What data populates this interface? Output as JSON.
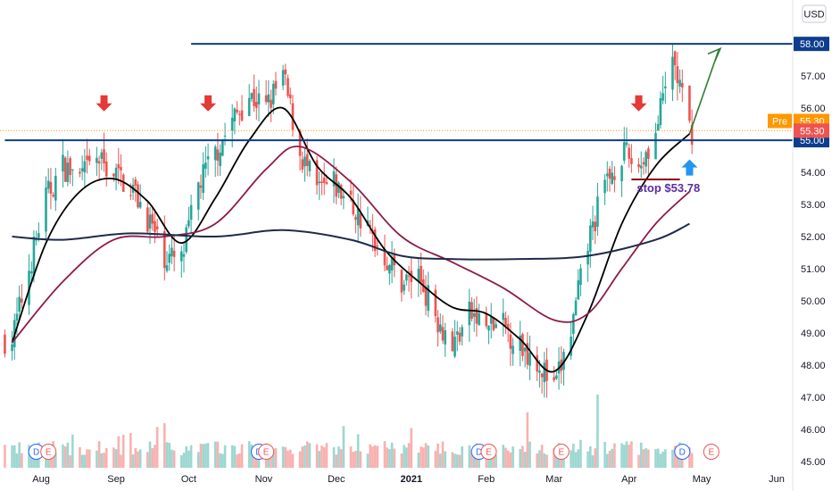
{
  "chart_data": {
    "type": "candlestick",
    "currency": "USD",
    "y_range": [
      44.8,
      59.2
    ],
    "y_ticks": [
      "45.00",
      "46.00",
      "47.00",
      "48.00",
      "49.00",
      "50.00",
      "51.00",
      "52.00",
      "53.00",
      "54.00",
      "55.00",
      "56.00",
      "57.00",
      "58.00"
    ],
    "x_ticks": [
      "Aug",
      "Sep",
      "Oct",
      "Nov",
      "Dec",
      "2021",
      "Feb",
      "Mar",
      "Apr",
      "May",
      "Jun"
    ],
    "price_path": [
      [
        "2020-07-20",
        48.8
      ],
      [
        "2020-07-27",
        51.0
      ],
      [
        "2020-08-03",
        53.2
      ],
      [
        "2020-08-10",
        54.2
      ],
      [
        "2020-08-17",
        53.8
      ],
      [
        "2020-08-24",
        54.4
      ],
      [
        "2020-08-31",
        54.0
      ],
      [
        "2020-09-07",
        53.6
      ],
      [
        "2020-09-14",
        52.6
      ],
      [
        "2020-09-21",
        51.4
      ],
      [
        "2020-09-28",
        51.2
      ],
      [
        "2020-10-05",
        53.6
      ],
      [
        "2020-10-12",
        54.6
      ],
      [
        "2020-10-19",
        55.6
      ],
      [
        "2020-10-26",
        56.4
      ],
      [
        "2020-11-02",
        56.0
      ],
      [
        "2020-11-09",
        57.0
      ],
      [
        "2020-11-16",
        54.6
      ],
      [
        "2020-11-23",
        53.4
      ],
      [
        "2020-11-30",
        53.6
      ],
      [
        "2020-12-07",
        53.0
      ],
      [
        "2020-12-14",
        52.2
      ],
      [
        "2020-12-21",
        51.4
      ],
      [
        "2020-12-28",
        50.6
      ],
      [
        "2021-01-04",
        50.8
      ],
      [
        "2021-01-11",
        49.6
      ],
      [
        "2021-01-18",
        48.6
      ],
      [
        "2021-01-25",
        49.6
      ],
      [
        "2021-02-01",
        49.2
      ],
      [
        "2021-02-08",
        49.2
      ],
      [
        "2021-02-15",
        48.6
      ],
      [
        "2021-02-22",
        48.2
      ],
      [
        "2021-03-01",
        47.2
      ],
      [
        "2021-03-08",
        49.0
      ],
      [
        "2021-03-15",
        51.8
      ],
      [
        "2021-03-22",
        53.6
      ],
      [
        "2021-03-29",
        54.6
      ],
      [
        "2021-04-05",
        54.2
      ],
      [
        "2021-04-12",
        55.2
      ],
      [
        "2021-04-19",
        57.6
      ],
      [
        "2021-04-26",
        55.3
      ]
    ],
    "moving_averages": [
      {
        "color": "#000000",
        "points": [
          [
            "2020-07-20",
            48.7
          ],
          [
            "2020-08-03",
            51.8
          ],
          [
            "2020-08-17",
            53.4
          ],
          [
            "2020-08-31",
            53.8
          ],
          [
            "2020-09-14",
            53.1
          ],
          [
            "2020-09-28",
            51.8
          ],
          [
            "2020-10-12",
            53.2
          ],
          [
            "2020-10-26",
            55.0
          ],
          [
            "2020-11-09",
            56.0
          ],
          [
            "2020-11-23",
            54.2
          ],
          [
            "2020-12-07",
            53.2
          ],
          [
            "2020-12-21",
            51.6
          ],
          [
            "2021-01-04",
            50.6
          ],
          [
            "2021-01-18",
            49.8
          ],
          [
            "2021-02-01",
            49.6
          ],
          [
            "2021-02-15",
            48.8
          ],
          [
            "2021-03-01",
            47.8
          ],
          [
            "2021-03-15",
            49.6
          ],
          [
            "2021-03-29",
            52.4
          ],
          [
            "2021-04-12",
            54.2
          ],
          [
            "2021-04-26",
            55.2
          ]
        ]
      },
      {
        "color": "#8e1a4b",
        "points": [
          [
            "2020-07-20",
            48.7
          ],
          [
            "2020-08-10",
            50.6
          ],
          [
            "2020-08-31",
            51.9
          ],
          [
            "2020-09-21",
            52.0
          ],
          [
            "2020-10-12",
            52.4
          ],
          [
            "2020-11-02",
            54.1
          ],
          [
            "2020-11-16",
            54.8
          ],
          [
            "2020-12-07",
            53.7
          ],
          [
            "2020-12-28",
            52.0
          ],
          [
            "2021-01-18",
            51.2
          ],
          [
            "2021-02-08",
            50.4
          ],
          [
            "2021-03-01",
            49.4
          ],
          [
            "2021-03-15",
            49.6
          ],
          [
            "2021-03-29",
            51.0
          ],
          [
            "2021-04-12",
            52.4
          ],
          [
            "2021-04-26",
            53.4
          ]
        ]
      },
      {
        "color": "#1e2b4a",
        "points": [
          [
            "2020-07-20",
            52.0
          ],
          [
            "2020-08-10",
            51.9
          ],
          [
            "2020-09-07",
            52.1
          ],
          [
            "2020-10-12",
            52.0
          ],
          [
            "2020-11-09",
            52.2
          ],
          [
            "2020-12-07",
            51.9
          ],
          [
            "2020-12-28",
            51.4
          ],
          [
            "2021-01-18",
            51.3
          ],
          [
            "2021-02-15",
            51.3
          ],
          [
            "2021-03-15",
            51.4
          ],
          [
            "2021-04-12",
            51.9
          ],
          [
            "2021-04-26",
            52.4
          ]
        ]
      }
    ],
    "horizontal_levels": [
      {
        "price": 58.0,
        "label": "58.00",
        "color": "#0d3d8c",
        "from": "2020-10-02"
      },
      {
        "price": 55.0,
        "label": "55.00",
        "color": "#0d3d8c",
        "from": "2020-07-17"
      }
    ],
    "price_tags": [
      {
        "label": "Pre",
        "value": "55.30",
        "price": 55.6,
        "color": "#ff9800"
      },
      {
        "label": "",
        "value": "55.30",
        "price": 55.3,
        "color": "#ef5350"
      }
    ],
    "dotted_level": 55.3,
    "resistance_arrows": [
      {
        "date": "2020-08-27",
        "price": 55.9
      },
      {
        "date": "2020-10-09",
        "price": 55.9
      },
      {
        "date": "2021-04-05",
        "price": 55.9
      }
    ],
    "support_arrow": {
      "date": "2021-04-26",
      "price": 54.4
    },
    "stop_line": {
      "price": 53.78,
      "from": "2021-04-02",
      "to": "2021-04-22",
      "label": "stop $53.78"
    },
    "projection": {
      "from": [
        "2021-04-26",
        55.2
      ],
      "to": [
        "2021-05-08",
        57.8
      ]
    },
    "events": [
      {
        "date": "2020-07-30",
        "letter": "D",
        "color": "#2962ff"
      },
      {
        "date": "2020-08-04",
        "letter": "E",
        "color": "#ef5350"
      },
      {
        "date": "2020-10-30",
        "letter": "D",
        "color": "#2962ff"
      },
      {
        "date": "2020-11-02",
        "letter": "E",
        "color": "#ef5350"
      },
      {
        "date": "2021-01-29",
        "letter": "D",
        "color": "#2962ff"
      },
      {
        "date": "2021-02-02",
        "letter": "E",
        "color": "#ef5350"
      },
      {
        "date": "2021-03-04",
        "letter": "E",
        "color": "#ef5350"
      },
      {
        "date": "2021-04-23",
        "letter": "D",
        "color": "#2962ff"
      },
      {
        "date": "2021-05-05",
        "letter": "E",
        "color": "#ef5350"
      }
    ],
    "colors": {
      "up": "#26a69a",
      "down": "#ef5350",
      "arrow_down": "#e53935",
      "arrow_up": "#2196f3",
      "projection": "#2e7d32",
      "stop_line": "#8b0000",
      "stop_text": "#5b2da0"
    }
  }
}
